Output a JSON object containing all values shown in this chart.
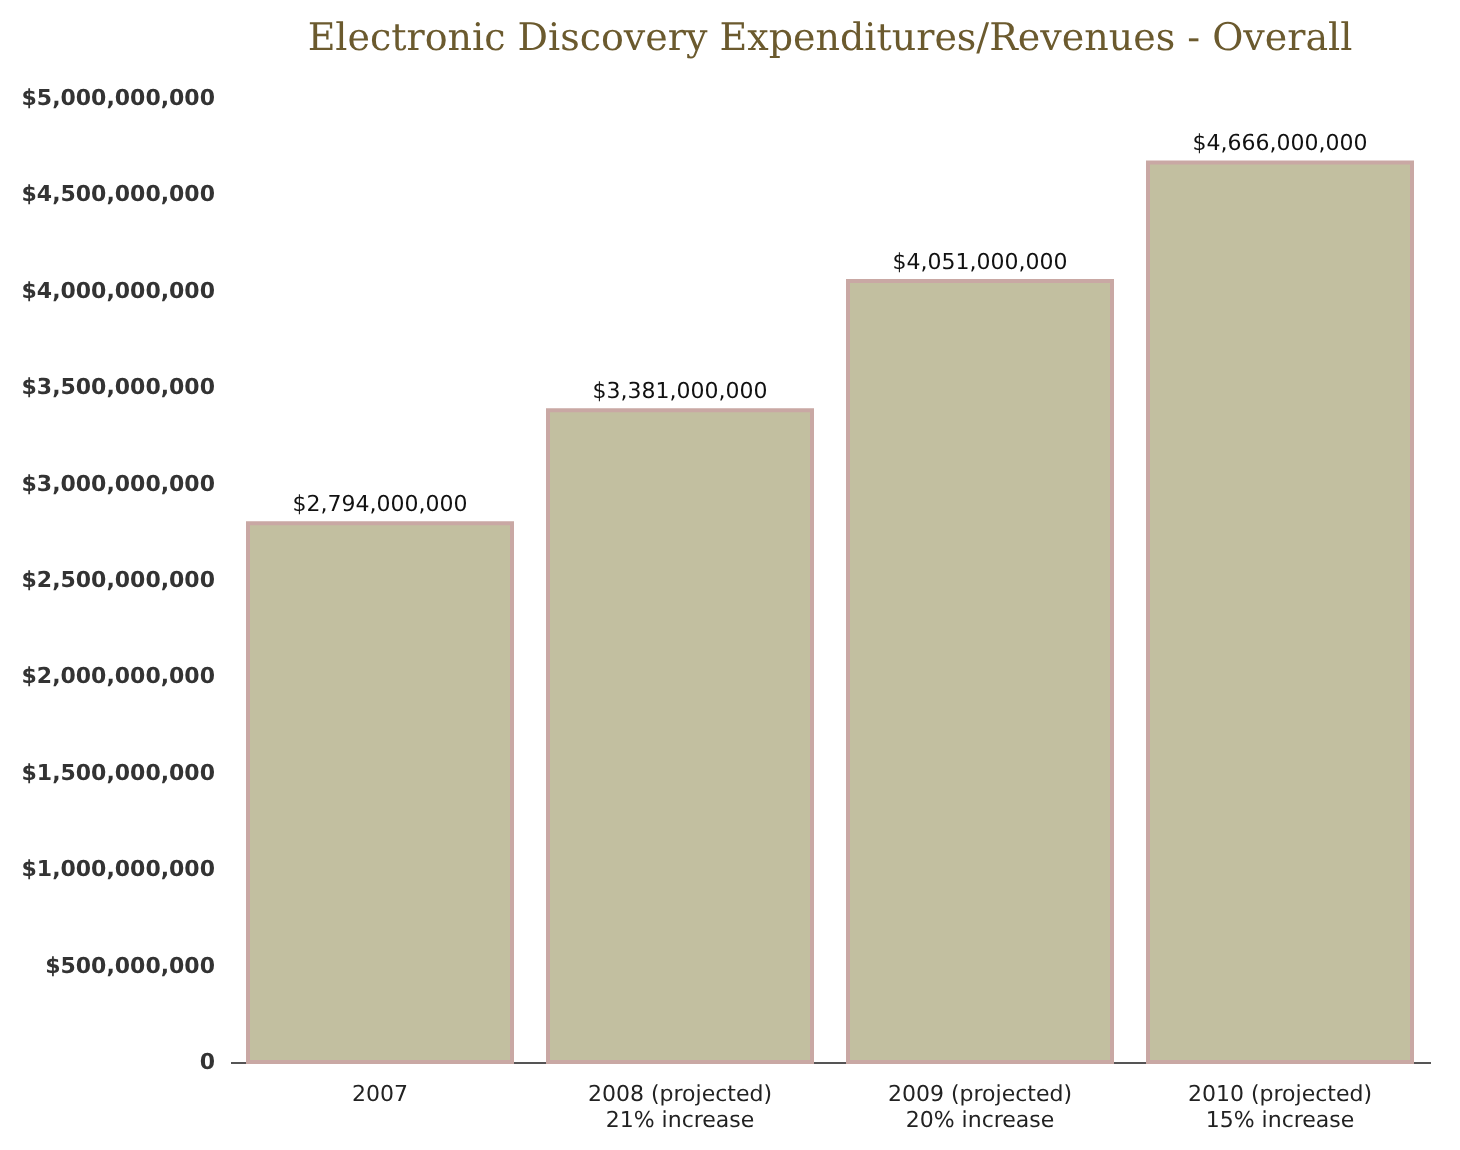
{
  "chart_data": {
    "type": "bar",
    "title": "Electronic Discovery Expenditures/Revenues - Overall",
    "categories": [
      "2007",
      "2008 (projected)\n21% increase",
      "2009 (projected)\n20% increase",
      "2010 (projected)\n15% increase"
    ],
    "values": [
      2794000000,
      3381000000,
      4051000000,
      4666000000
    ],
    "color": "#c2bfa0",
    "ylim": [
      0,
      5000000000
    ],
    "yticks": [
      0,
      {
        "value": 500000000,
        "label": "$500,000,000"
      },
      {
        "value": 1000000000,
        "label": "$1,000,000,000"
      },
      {
        "value": 1500000000,
        "label": "$1,500,000,000"
      },
      {
        "value": 2000000000,
        "label": "$2,000,000,000"
      },
      {
        "value": 2500000000,
        "label": "$2,500,000,000"
      },
      {
        "value": 3000000000,
        "label": "$3,000,000,000"
      },
      {
        "value": 3500000000,
        "label": "$3,500,000,000"
      },
      {
        "value": 4000000000,
        "label": "$4,000,000,000"
      },
      {
        "value": 4500000000,
        "label": "$4,500,000,000"
      },
      {
        "value": 5000000000,
        "label": "$5,000,000,000"
      }
    ],
    "value_labels": [
      "$2,794,000,000",
      "$3,381,000,000",
      "$4,051,000,000",
      "$4,666,000,000"
    ],
    "grid": false
  }
}
